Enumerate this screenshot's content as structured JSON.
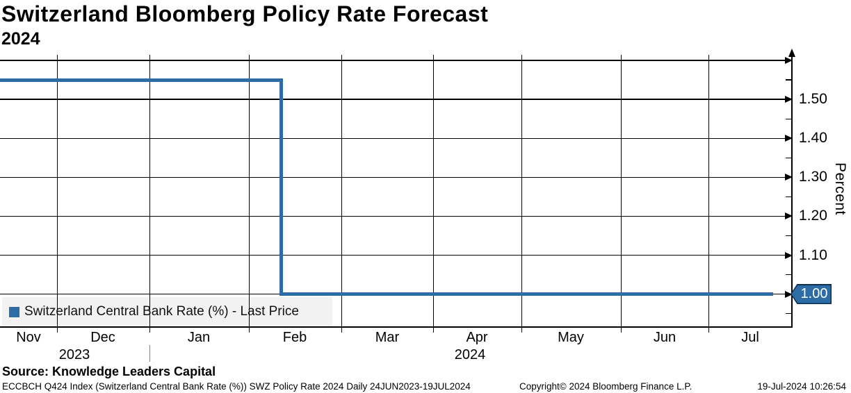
{
  "header": {
    "title": "Switzerland Bloomberg Policy Rate Forecast",
    "subtitle": "2024"
  },
  "chart_data": {
    "type": "line",
    "title": "Switzerland Bloomberg Policy Rate Forecast",
    "subtitle": "2024",
    "series": [
      {
        "name": "Switzerland Central Bank Rate (%) - Last Price",
        "color": "#2d6ca4",
        "style": "step",
        "points": [
          {
            "x": "mid-Nov-2023 (left edge of window)",
            "y": 1.55
          },
          {
            "x": "~09-Feb-2024",
            "y": 1.55
          },
          {
            "x": "~09-Feb-2024",
            "y": 1.0
          },
          {
            "x": "19-Jul-2024",
            "y": 1.0
          }
        ]
      }
    ],
    "x_axis": {
      "month_labels": [
        "Nov",
        "Dec",
        "Jan",
        "Feb",
        "Mar",
        "Apr",
        "May",
        "Jun",
        "Jul"
      ],
      "year_labels": [
        "2023",
        "2024"
      ]
    },
    "y_axis": {
      "label": "Percent",
      "side": "right",
      "major_gridlines": [
        1.6,
        1.5,
        1.4,
        1.3,
        1.2,
        1.1,
        1.0
      ],
      "labeled_ticks": [
        {
          "value": 1.5,
          "text": "1.50"
        },
        {
          "value": 1.4,
          "text": "1.40"
        },
        {
          "value": 1.3,
          "text": "1.30"
        },
        {
          "value": 1.2,
          "text": "1.20"
        },
        {
          "value": 1.1,
          "text": "1.10"
        }
      ],
      "minor_ticks": [
        1.55,
        1.45,
        1.35,
        1.25,
        1.15,
        1.05,
        0.95
      ],
      "ylim": [
        0.915,
        1.6
      ],
      "last_price_tag": "1.00"
    },
    "grid": true,
    "legend_position": "bottom-left"
  },
  "legend": {
    "label": "Switzerland Central Bank Rate (%) - Last Price"
  },
  "footer": {
    "source": "Source: Knowledge Leaders Capital",
    "index_info": "ECCBCH Q424 Index (Switzerland Central Bank Rate (%)) SWZ Policy Rate 2024  Daily 24JUN2023-19JUL2024",
    "copyright": "Copyright© 2024 Bloomberg Finance L.P.",
    "timestamp": "19-Jul-2024 10:26:54"
  },
  "colors": {
    "line": "#2d6ca4",
    "tag_fill": "#2d6ca4",
    "tag_border": "#0e2f52",
    "legend_bg": "#f2f2f2",
    "grid": "#000000"
  }
}
